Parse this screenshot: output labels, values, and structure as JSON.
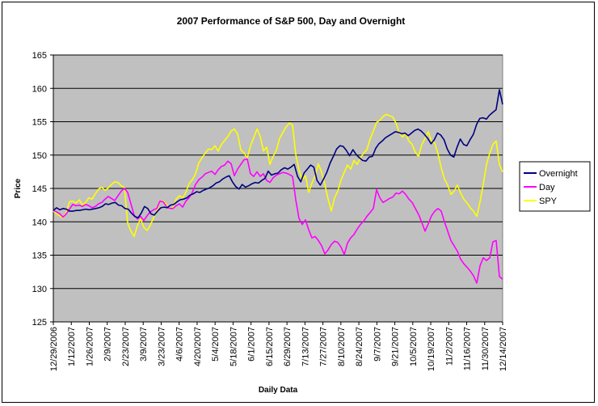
{
  "chart_data": {
    "type": "line",
    "title": "2007 Performance of S&P 500, Day and Overnight",
    "xlabel": "Daily Data",
    "ylabel": "Price",
    "ylim": [
      125,
      165
    ],
    "yticks": [
      125,
      130,
      135,
      140,
      145,
      150,
      155,
      160,
      165
    ],
    "x_tick_labels": [
      "12/29/2006",
      "1/12/2007",
      "1/26/2007",
      "2/9/2007",
      "2/23/2007",
      "3/9/2007",
      "3/23/2007",
      "4/6/2007",
      "4/20/2007",
      "5/4/2007",
      "5/18/2007",
      "6/1/2007",
      "6/15/2007",
      "6/29/2007",
      "7/13/2007",
      "7/27/2007",
      "8/10/2007",
      "8/24/2007",
      "9/7/2007",
      "9/21/2007",
      "10/5/2007",
      "10/19/2007",
      "11/2/2007",
      "11/16/2007",
      "11/30/2007",
      "12/14/2007"
    ],
    "grid": true,
    "legend_position": "right",
    "plot_background": "#c0c0c0",
    "series": [
      {
        "name": "Overnight",
        "color": "#000080",
        "values": [
          141.7,
          142.1,
          141.8,
          142.0,
          141.9,
          141.6,
          141.6,
          141.7,
          141.7,
          141.8,
          141.9,
          141.8,
          141.9,
          142.0,
          142.1,
          142.3,
          142.7,
          142.6,
          142.8,
          142.9,
          142.5,
          142.4,
          142.0,
          141.9,
          141.3,
          140.8,
          140.6,
          141.3,
          142.3,
          142.0,
          141.2,
          141.0,
          141.6,
          142.1,
          142.2,
          142.1,
          142.5,
          142.6,
          143.0,
          143.3,
          143.4,
          143.6,
          144.0,
          144.2,
          144.5,
          144.4,
          144.7,
          144.9,
          145.1,
          145.4,
          145.8,
          146.0,
          146.4,
          146.7,
          146.9,
          146.0,
          145.3,
          144.9,
          145.6,
          145.2,
          145.4,
          145.7,
          145.9,
          145.8,
          146.2,
          146.5,
          147.6,
          147.0,
          147.2,
          147.3,
          147.8,
          148.1,
          147.9,
          148.2,
          148.6,
          146.8,
          146.0,
          147.3,
          147.9,
          148.5,
          148.2,
          146.2,
          145.5,
          146.4,
          147.4,
          148.8,
          149.8,
          150.9,
          151.4,
          151.3,
          150.7,
          149.9,
          150.8,
          150.1,
          149.6,
          149.2,
          149.1,
          149.7,
          149.8,
          151.0,
          151.7,
          152.1,
          152.6,
          152.9,
          153.2,
          153.5,
          153.4,
          153.2,
          153.3,
          152.9,
          153.3,
          153.7,
          153.9,
          153.6,
          153.1,
          152.5,
          151.7,
          152.3,
          153.3,
          153.0,
          152.3,
          150.9,
          150.0,
          149.7,
          151.2,
          152.4,
          151.6,
          151.4,
          152.3,
          153.1,
          154.6,
          155.5,
          155.6,
          155.4,
          156.0,
          156.4,
          156.8,
          159.8,
          157.6
        ]
      },
      {
        "name": "Day",
        "color": "#ff00ff",
        "values": [
          141.7,
          141.5,
          141.2,
          140.7,
          141.2,
          141.9,
          142.6,
          142.4,
          142.5,
          142.3,
          142.6,
          142.4,
          142.1,
          142.3,
          142.7,
          142.9,
          143.4,
          143.8,
          143.5,
          143.2,
          143.9,
          144.6,
          145.0,
          144.4,
          142.7,
          141.0,
          140.4,
          140.8,
          140.2,
          140.9,
          141.5,
          141.8,
          142.0,
          143.1,
          143.0,
          142.3,
          142.0,
          142.0,
          142.4,
          142.7,
          142.2,
          143.1,
          143.6,
          144.4,
          145.6,
          146.3,
          146.7,
          147.2,
          147.4,
          147.6,
          147.1,
          147.8,
          148.3,
          148.5,
          149.1,
          148.7,
          146.9,
          147.9,
          148.6,
          149.3,
          149.4,
          147.2,
          146.8,
          147.5,
          146.8,
          147.2,
          146.2,
          145.9,
          146.6,
          147.0,
          147.2,
          147.4,
          147.3,
          147.1,
          146.8,
          143.3,
          140.5,
          139.6,
          140.3,
          138.8,
          137.6,
          137.8,
          137.2,
          136.4,
          135.2,
          135.8,
          136.6,
          137.1,
          136.9,
          136.2,
          135.1,
          136.8,
          137.6,
          138.1,
          138.9,
          139.6,
          140.1,
          140.8,
          141.4,
          142.0,
          144.8,
          143.6,
          142.9,
          143.2,
          143.5,
          143.7,
          144.3,
          144.2,
          144.6,
          144.1,
          143.4,
          142.9,
          142.0,
          141.1,
          139.9,
          138.6,
          139.7,
          140.9,
          141.6,
          142.0,
          141.6,
          140.0,
          138.6,
          137.2,
          136.4,
          135.6,
          134.4,
          133.7,
          133.2,
          132.6,
          131.9,
          130.8,
          133.4,
          134.6,
          134.2,
          134.6,
          137.0,
          137.2,
          131.8,
          131.4
        ]
      },
      {
        "name": "SPY",
        "color": "#ffff00",
        "values": [
          141.6,
          141.2,
          140.9,
          140.6,
          141.4,
          143.0,
          143.1,
          142.8,
          143.3,
          142.5,
          142.9,
          143.6,
          143.4,
          144.2,
          144.9,
          145.2,
          144.7,
          145.1,
          145.6,
          146.0,
          145.9,
          145.4,
          145.1,
          139.8,
          138.6,
          137.8,
          139.4,
          140.4,
          139.2,
          138.7,
          139.5,
          140.6,
          141.6,
          143.1,
          143.1,
          142.6,
          141.9,
          142.1,
          143.4,
          143.9,
          143.6,
          144.4,
          145.7,
          146.3,
          147.2,
          148.8,
          149.6,
          150.3,
          150.9,
          150.8,
          151.4,
          150.6,
          151.6,
          152.2,
          152.8,
          153.6,
          153.9,
          153.2,
          150.8,
          150.3,
          149.6,
          151.4,
          152.6,
          153.9,
          152.8,
          150.6,
          151.2,
          148.6,
          149.8,
          150.7,
          152.5,
          153.4,
          154.2,
          154.8,
          154.5,
          150.1,
          147.8,
          146.3,
          146.9,
          144.4,
          145.8,
          146.9,
          148.7,
          147.4,
          145.6,
          143.4,
          141.6,
          143.6,
          144.6,
          146.3,
          147.4,
          148.5,
          147.9,
          149.2,
          148.6,
          149.6,
          150.3,
          150.8,
          152.4,
          153.6,
          154.9,
          155.2,
          155.8,
          156.1,
          155.9,
          155.7,
          154.8,
          153.4,
          152.7,
          153.2,
          152.1,
          151.6,
          150.4,
          149.8,
          151.6,
          152.5,
          153.5,
          152.1,
          151.8,
          150.2,
          148.1,
          146.4,
          145.5,
          144.1,
          144.6,
          145.5,
          144.3,
          143.4,
          142.8,
          142.1,
          141.6,
          140.8,
          143.0,
          145.6,
          148.6,
          150.3,
          151.6,
          152.1,
          148.6,
          147.5
        ]
      }
    ]
  }
}
